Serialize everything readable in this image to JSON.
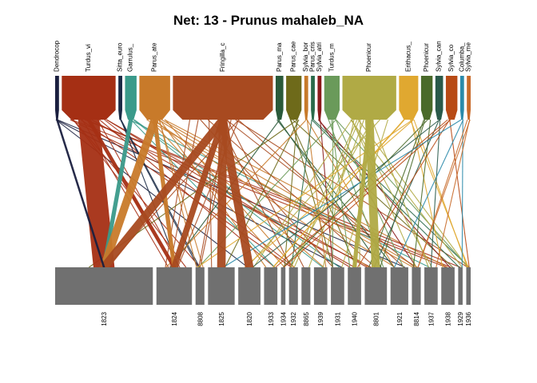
{
  "title": "Net: 13 - Prunus mahaleb_NA",
  "colors": {
    "lower_box": "#707070",
    "background": "#ffffff"
  },
  "chart_data": {
    "type": "bipartite-network",
    "title": "Net: 13 - Prunus mahaleb_NA",
    "higher_level": [
      {
        "label": "Dendrocop",
        "color": "#1a1f3f",
        "weight": 1
      },
      {
        "label": "Turdus_vi",
        "color": "#a52f14",
        "weight": 14
      },
      {
        "label": "Sitta_euro",
        "color": "#1a2a45",
        "weight": 1
      },
      {
        "label": "Garrulus_",
        "color": "#3a9a8a",
        "weight": 3
      },
      {
        "label": "Parus_ate",
        "color": "#c87a2a",
        "weight": 8
      },
      {
        "label": "Fringilla_c",
        "color": "#a84a20",
        "weight": 26
      },
      {
        "label": "Parus_ma",
        "color": "#2a5a3a",
        "weight": 2
      },
      {
        "label": "Parus_cae",
        "color": "#6e6a1a",
        "weight": 4
      },
      {
        "label": "Sylvia_bor",
        "color": "#c87a2a",
        "weight": 1
      },
      {
        "label": "Parus_cris",
        "color": "#2a6a4a",
        "weight": 1
      },
      {
        "label": "Sylvia_atri",
        "color": "#8a1a1a",
        "weight": 1
      },
      {
        "label": "Turdus_m",
        "color": "#6a9a5a",
        "weight": 4
      },
      {
        "label": "Phoenicur",
        "color": "#b0aa45",
        "weight": 14
      },
      {
        "label": "Erithacus_",
        "color": "#e0a830",
        "weight": 5
      },
      {
        "label": "Phoenicur",
        "color": "#4a6a2a",
        "weight": 3
      },
      {
        "label": "Sylvia_can",
        "color": "#2a5a4a",
        "weight": 2
      },
      {
        "label": "Sylvia_co",
        "color": "#b84a15",
        "weight": 3
      },
      {
        "label": "Columba_",
        "color": "#2a8aaa",
        "weight": 1
      },
      {
        "label": "Sylvia_me",
        "color": "#c86a2a",
        "weight": 1
      }
    ],
    "lower_level": [
      {
        "label": "1823",
        "weight": 22
      },
      {
        "label": "1824",
        "weight": 8
      },
      {
        "label": "8808",
        "weight": 2
      },
      {
        "label": "1825",
        "weight": 6
      },
      {
        "label": "1820",
        "weight": 5
      },
      {
        "label": "1933",
        "weight": 3
      },
      {
        "label": "1934",
        "weight": 1
      },
      {
        "label": "1932",
        "weight": 2
      },
      {
        "label": "8865",
        "weight": 2
      },
      {
        "label": "1939",
        "weight": 3
      },
      {
        "label": "1931",
        "weight": 3
      },
      {
        "label": "1940",
        "weight": 3
      },
      {
        "label": "8801",
        "weight": 5
      },
      {
        "label": "1921",
        "weight": 4
      },
      {
        "label": "8814",
        "weight": 2
      },
      {
        "label": "1937",
        "weight": 3
      },
      {
        "label": "1938",
        "weight": 3
      },
      {
        "label": "1929",
        "weight": 1
      },
      {
        "label": "1936",
        "weight": 1
      }
    ],
    "major_links": [
      {
        "from": "Turdus_vi",
        "to": "1823",
        "weight": 10
      },
      {
        "from": "Turdus_vi",
        "to": "1824",
        "weight": 2
      },
      {
        "from": "Garrulus_",
        "to": "1823",
        "weight": 2
      },
      {
        "from": "Parus_ate",
        "to": "1823",
        "weight": 4
      },
      {
        "from": "Parus_ate",
        "to": "1824",
        "weight": 2
      },
      {
        "from": "Fringilla_c",
        "to": "1823",
        "weight": 5
      },
      {
        "from": "Fringilla_c",
        "to": "1824",
        "weight": 3
      },
      {
        "from": "Fringilla_c",
        "to": "1825",
        "weight": 4
      },
      {
        "from": "Fringilla_c",
        "to": "1820",
        "weight": 4
      },
      {
        "from": "Phoenicur",
        "to": "8801",
        "weight": 4
      },
      {
        "from": "Phoenicur",
        "to": "1940",
        "weight": 2
      },
      {
        "from": "Dendrocop",
        "to": "1823",
        "weight": 1
      }
    ]
  }
}
